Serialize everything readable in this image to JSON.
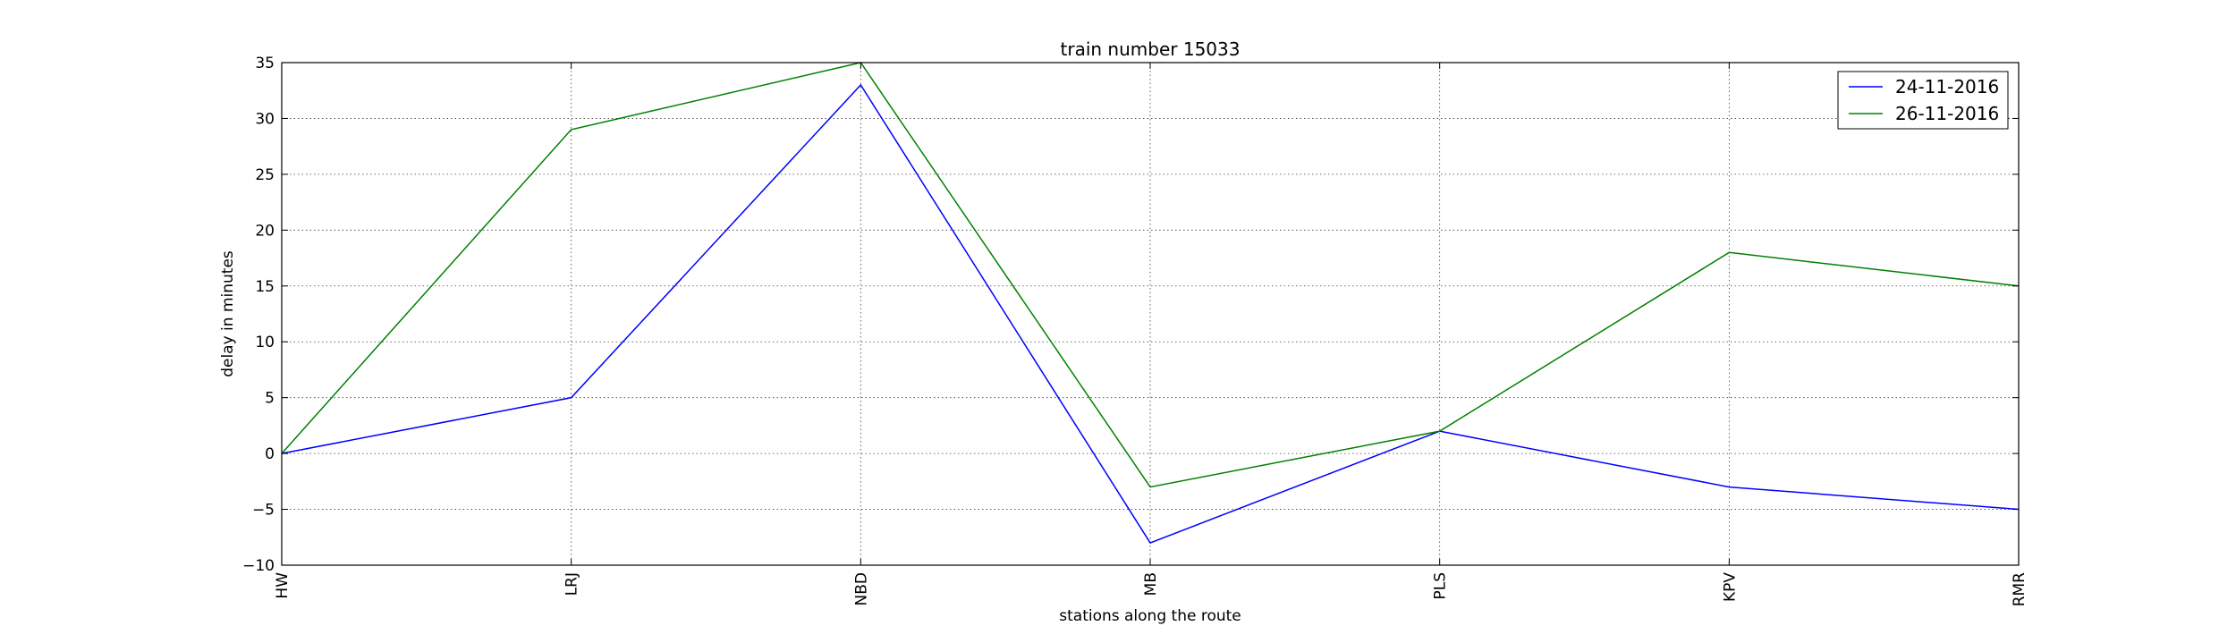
{
  "chart_data": {
    "type": "line",
    "title": "train number 15033",
    "xlabel": "stations along the route",
    "ylabel": "delay in minutes",
    "categories": [
      "HW",
      "LRJ",
      "NBD",
      "MB",
      "PLS",
      "KPV",
      "RMR"
    ],
    "ylim": [
      -10,
      35
    ],
    "yticks": [
      -10,
      -5,
      0,
      5,
      10,
      15,
      20,
      25,
      30,
      35
    ],
    "grid": true,
    "legend_position": "top-right",
    "series": [
      {
        "name": "24-11-2016",
        "color": "#0000ff",
        "values": [
          0,
          5,
          33,
          -8,
          2,
          -3,
          -5
        ]
      },
      {
        "name": "26-11-2016",
        "color": "#008000",
        "values": [
          0,
          29,
          35,
          -3,
          2,
          18,
          15
        ]
      }
    ]
  }
}
